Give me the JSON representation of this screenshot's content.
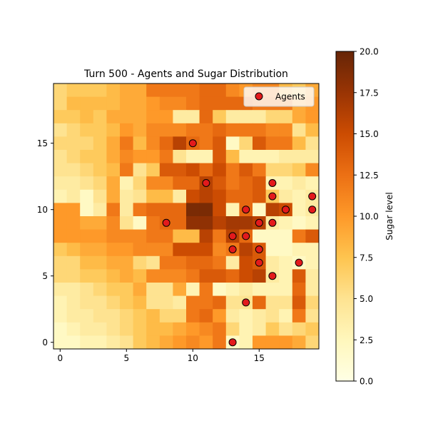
{
  "chart_data": {
    "type": "heatmap",
    "title": "Turn 500 - Agents and Sugar Distribution",
    "xlabel": "",
    "ylabel": "",
    "grid": false,
    "xlim": [
      -0.5,
      19.5
    ],
    "ylim": [
      -0.5,
      19.5
    ],
    "x_ticks": [
      0,
      5,
      10,
      15
    ],
    "y_ticks": [
      0,
      5,
      10,
      15
    ],
    "legend": {
      "position": "top-right",
      "label": "Agents"
    },
    "colormap": {
      "name": "YlOrBr",
      "stops": [
        "#ffffe5",
        "#fff7bc",
        "#fee391",
        "#fec44f",
        "#fe9929",
        "#ec7014",
        "#cc4c02",
        "#993404",
        "#662506"
      ]
    },
    "colorbar": {
      "label": "Sugar level",
      "vmin": 0,
      "vmax": 20,
      "ticks": [
        "0.0",
        "2.5",
        "5.0",
        "7.5",
        "10.0",
        "12.5",
        "15.0",
        "17.5",
        "20.0"
      ]
    },
    "grid_rows_top_to_bottom": [
      [
        6,
        7,
        7,
        7,
        8,
        9,
        9,
        12,
        12,
        12,
        12,
        13,
        13,
        11,
        10,
        11,
        11,
        8,
        7,
        9
      ],
      [
        6,
        8,
        8,
        8,
        8,
        9,
        9,
        10,
        11,
        11,
        12,
        13,
        13,
        13,
        13,
        12,
        12,
        12,
        9,
        10
      ],
      [
        7,
        7,
        8,
        7,
        9,
        9,
        9,
        10,
        10,
        4,
        4,
        13,
        7,
        4,
        4,
        4,
        6,
        6,
        9,
        10
      ],
      [
        5,
        6,
        7,
        7,
        8,
        10,
        9,
        11,
        11,
        11,
        12,
        12,
        13,
        12,
        12,
        12,
        11,
        11,
        5,
        8
      ],
      [
        6,
        6,
        6,
        7,
        9,
        12,
        8,
        11,
        13,
        16,
        13,
        12,
        14,
        2,
        6,
        14,
        12,
        12,
        8,
        5
      ],
      [
        5,
        6,
        7,
        7,
        9,
        11,
        10,
        10,
        12,
        5,
        3,
        3,
        14,
        8,
        3,
        3,
        3,
        4,
        4,
        4
      ],
      [
        5,
        5,
        6,
        7,
        8,
        12,
        5,
        7,
        14,
        14,
        15,
        13,
        15,
        12,
        14,
        12,
        6,
        6,
        7,
        11
      ],
      [
        4,
        4,
        5,
        6,
        9,
        3,
        6,
        11,
        11,
        13,
        13,
        16,
        14,
        12,
        13,
        14,
        3,
        3,
        4,
        3
      ],
      [
        3,
        4,
        2,
        5,
        9,
        4,
        5,
        8,
        8,
        4,
        15,
        16,
        15,
        13,
        13,
        14,
        7,
        4,
        3,
        4
      ],
      [
        10,
        10,
        2,
        4,
        12,
        4,
        12,
        13,
        13,
        13,
        19,
        19,
        15,
        3,
        13,
        2,
        16,
        15,
        3,
        4
      ],
      [
        10,
        10,
        9,
        9,
        11,
        5,
        2,
        12,
        13,
        13,
        18,
        18,
        16,
        17,
        17,
        16,
        4,
        3,
        2,
        3
      ],
      [
        10,
        10,
        10,
        10,
        11,
        11,
        11,
        12,
        12,
        8,
        8,
        16,
        12,
        16,
        13,
        2,
        2,
        2,
        12,
        14
      ],
      [
        7,
        8,
        9,
        9,
        10,
        10,
        11,
        11,
        11,
        15,
        15,
        15,
        11,
        12,
        16,
        14,
        2,
        2,
        3,
        3
      ],
      [
        6,
        6,
        8,
        8,
        9,
        9,
        6,
        5,
        12,
        12,
        13,
        13,
        12,
        4,
        15,
        14,
        4,
        3,
        2,
        3
      ],
      [
        6,
        6,
        7,
        7,
        8,
        9,
        8,
        11,
        11,
        11,
        12,
        14,
        14,
        13,
        15,
        16,
        4,
        3,
        14,
        4
      ],
      [
        4,
        4,
        5,
        6,
        7,
        7,
        9,
        5,
        5,
        9,
        3,
        12,
        2,
        3,
        4,
        3,
        3,
        3,
        13,
        4
      ],
      [
        3,
        4,
        5,
        5,
        6,
        7,
        8,
        5,
        5,
        4,
        12,
        12,
        13,
        5,
        5,
        13,
        5,
        5,
        14,
        6
      ],
      [
        3,
        4,
        4,
        5,
        5,
        6,
        7,
        8,
        6,
        6,
        12,
        13,
        10,
        4,
        3,
        4,
        5,
        3,
        12,
        5
      ],
      [
        2,
        3,
        4,
        4,
        5,
        6,
        7,
        8,
        8,
        9,
        10,
        11,
        12,
        6,
        3,
        4,
        7,
        5,
        6,
        7
      ],
      [
        2,
        2,
        3,
        3,
        4,
        5,
        7,
        8,
        9,
        10,
        11,
        10,
        12,
        2,
        3,
        10,
        10,
        10,
        9,
        6
      ]
    ],
    "agents": [
      {
        "x": 10,
        "y": 15
      },
      {
        "x": 11,
        "y": 12
      },
      {
        "x": 16,
        "y": 12
      },
      {
        "x": 16,
        "y": 11
      },
      {
        "x": 19,
        "y": 11
      },
      {
        "x": 14,
        "y": 10
      },
      {
        "x": 17,
        "y": 10
      },
      {
        "x": 19,
        "y": 10
      },
      {
        "x": 8,
        "y": 9
      },
      {
        "x": 15,
        "y": 9
      },
      {
        "x": 16,
        "y": 9
      },
      {
        "x": 13,
        "y": 8
      },
      {
        "x": 14,
        "y": 8
      },
      {
        "x": 13,
        "y": 7
      },
      {
        "x": 15,
        "y": 7
      },
      {
        "x": 15,
        "y": 6
      },
      {
        "x": 18,
        "y": 6
      },
      {
        "x": 16,
        "y": 5
      },
      {
        "x": 14,
        "y": 3
      },
      {
        "x": 13,
        "y": 0
      }
    ],
    "agent_color": "#e31a1c",
    "agent_edge_color": "#000000"
  }
}
